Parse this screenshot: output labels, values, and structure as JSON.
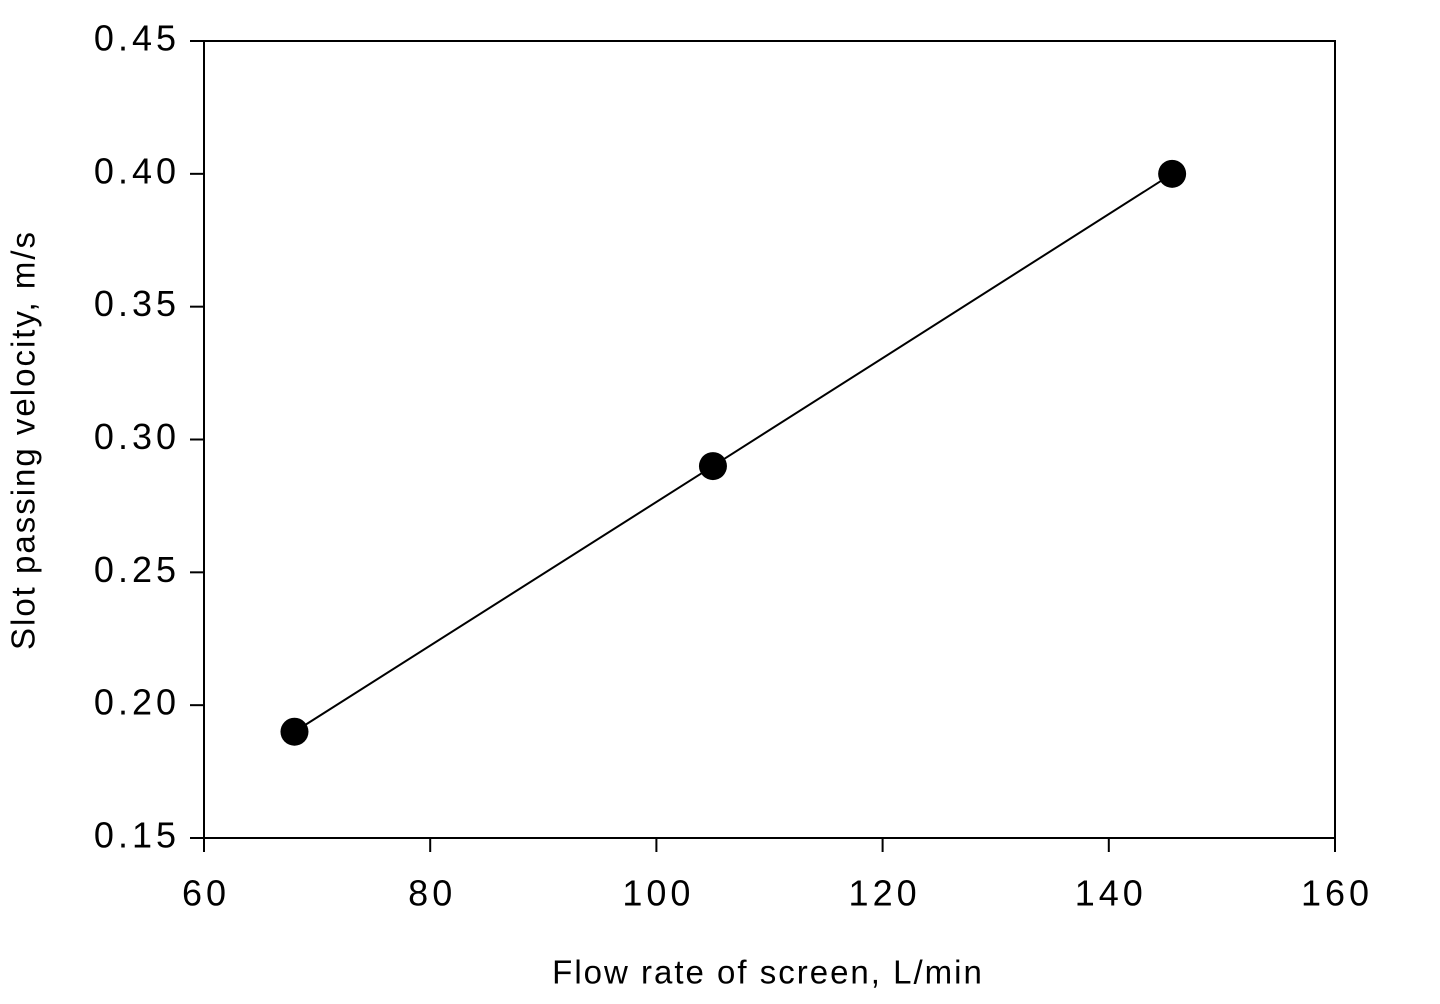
{
  "chart_data": {
    "type": "line",
    "x_label": "Flow rate of screen, L/min",
    "y_label": "Slot passing velocity, m/s",
    "x": [
      68,
      105,
      145.6
    ],
    "series": [
      {
        "values": [
          0.19,
          0.29,
          0.4
        ],
        "color": "#000000"
      }
    ],
    "xlim": [
      60,
      160
    ],
    "xticks": [
      60,
      80,
      100,
      120,
      140,
      160
    ],
    "ylim": [
      0.15,
      0.45
    ],
    "yticks": [
      0.15,
      {
        "value": 0.2,
        "label": "0.20"
      },
      0.25,
      {
        "value": 0.3,
        "label": "0.30"
      },
      0.35,
      {
        "value": 0.4,
        "label": "0.40"
      },
      0.45
    ],
    "grid": false
  }
}
